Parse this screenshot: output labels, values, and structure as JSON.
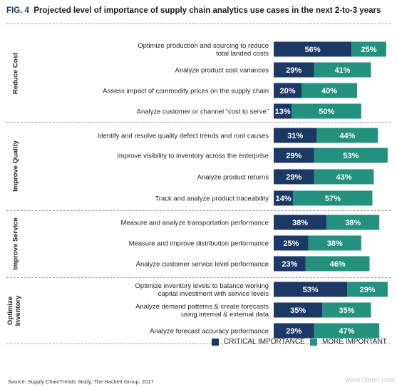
{
  "figure": {
    "number": "FIG. 4",
    "title": "Projected level of importance of supply chain analytics use cases in the next 2-to-3 years"
  },
  "colors": {
    "critical": "#1c3966",
    "important": "#23917d"
  },
  "legend": {
    "critical": "CRITICAL IMPORTANCE",
    "important": "MORE IMPORTANT"
  },
  "source": "Source: Supply ChainTrends Study, The Hackett Group, 2017",
  "watermark": "www.hleen.com",
  "chart_data": {
    "type": "bar",
    "orientation": "horizontal",
    "stacked": true,
    "value_suffix": "%",
    "series_keys": [
      "critical",
      "important"
    ],
    "series": [
      {
        "name": "CRITICAL IMPORTANCE",
        "color": "#1c3966"
      },
      {
        "name": "MORE IMPORTANT",
        "color": "#23917d"
      }
    ],
    "groups": [
      {
        "label": "Reduce Cost",
        "items": [
          {
            "label": [
              "Optimize production and sourcing to reduce",
              "total landed costs"
            ],
            "critical": 56,
            "important": 25
          },
          {
            "label": [
              "Analyze product cost variances"
            ],
            "critical": 29,
            "important": 41
          },
          {
            "label": [
              "Assess impact of commodity prices on the supply chain"
            ],
            "critical": 20,
            "important": 40
          },
          {
            "label": [
              "Analyze customer or channel “cost to serve”"
            ],
            "critical": 13,
            "important": 50
          }
        ]
      },
      {
        "label": "Improve Quality",
        "items": [
          {
            "label": [
              "Identify and resolve quality defect trends and root causes"
            ],
            "critical": 31,
            "important": 44
          },
          {
            "label": [
              "Improve visibility to inventory across the enterprise"
            ],
            "critical": 29,
            "important": 53
          },
          {
            "label": [
              "Analyze product returns"
            ],
            "critical": 29,
            "important": 43
          },
          {
            "label": [
              "Track and analyze product traceability"
            ],
            "critical": 14,
            "important": 57
          }
        ]
      },
      {
        "label": "Improve Service",
        "items": [
          {
            "label": [
              "Measure and analyze transportation performance"
            ],
            "critical": 38,
            "important": 38
          },
          {
            "label": [
              "Measure and improve distribution performance"
            ],
            "critical": 25,
            "important": 38
          },
          {
            "label": [
              "Analyze customer service level performance"
            ],
            "critical": 23,
            "important": 46
          }
        ]
      },
      {
        "label": [
          "Optimize",
          "Inventory"
        ],
        "items": [
          {
            "label": [
              "Optimize inventory levels to balance working",
              "capital investment with service levels"
            ],
            "critical": 53,
            "important": 29
          },
          {
            "label": [
              "Analyze demand patterns & create forecasts",
              "using internal & external data"
            ],
            "critical": 35,
            "important": 35
          },
          {
            "label": [
              "Analyze forecast accuracy performance"
            ],
            "critical": 29,
            "important": 47
          }
        ]
      }
    ]
  }
}
